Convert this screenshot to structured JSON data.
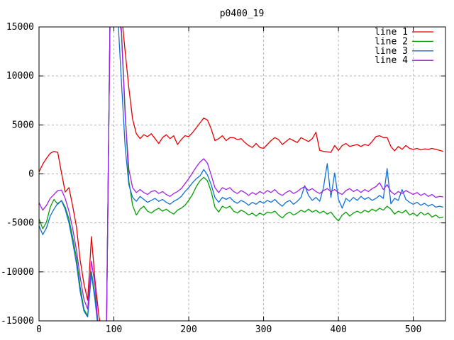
{
  "chart_data": {
    "type": "line",
    "title": "p0400_19",
    "xlabel": "",
    "ylabel": "",
    "xlim": [
      0,
      543
    ],
    "ylim": [
      -15000,
      15000
    ],
    "x_ticks": [
      0,
      100,
      200,
      300,
      400,
      500
    ],
    "y_ticks": [
      15000,
      10000,
      5000,
      0,
      -5000,
      -10000,
      -15000
    ],
    "grid": true,
    "legend_position": "top-right-inside",
    "x": [
      0,
      5,
      10,
      15,
      20,
      25,
      30,
      35,
      40,
      45,
      50,
      55,
      60,
      65,
      70,
      75,
      80,
      85,
      90,
      95,
      100,
      105,
      110,
      115,
      120,
      125,
      130,
      135,
      140,
      145,
      150,
      155,
      160,
      165,
      170,
      175,
      180,
      185,
      190,
      195,
      200,
      205,
      210,
      215,
      220,
      225,
      230,
      235,
      240,
      245,
      250,
      255,
      260,
      265,
      270,
      275,
      280,
      285,
      290,
      295,
      300,
      305,
      310,
      315,
      320,
      325,
      330,
      335,
      340,
      345,
      350,
      355,
      360,
      365,
      370,
      375,
      380,
      385,
      390,
      395,
      400,
      405,
      410,
      415,
      420,
      425,
      430,
      435,
      440,
      445,
      450,
      455,
      460,
      465,
      470,
      475,
      480,
      485,
      490,
      495,
      500,
      505,
      510,
      515,
      520,
      525,
      530,
      535,
      540
    ],
    "series": [
      {
        "name": "line 1",
        "color": "#e60000",
        "values": [
          200,
          1000,
          1600,
          2100,
          2300,
          2200,
          100,
          -1850,
          -1400,
          -3300,
          -5400,
          -8800,
          -11200,
          -12900,
          -6400,
          -11000,
          -14500,
          -16500,
          -16500,
          16500,
          16500,
          16500,
          16500,
          12500,
          8800,
          5600,
          4100,
          3600,
          4000,
          3800,
          4100,
          3600,
          3100,
          3700,
          4000,
          3600,
          3900,
          3000,
          3500,
          3900,
          3800,
          4200,
          4700,
          5200,
          5700,
          5500,
          4600,
          3400,
          3600,
          3900,
          3400,
          3700,
          3700,
          3500,
          3600,
          3200,
          2900,
          2700,
          3100,
          2700,
          2600,
          3000,
          3400,
          3700,
          3500,
          3000,
          3300,
          3600,
          3400,
          3200,
          3700,
          3500,
          3300,
          3600,
          4250,
          2400,
          2300,
          2250,
          2200,
          2900,
          2400,
          2900,
          3100,
          2800,
          2900,
          3000,
          2800,
          3000,
          2900,
          3300,
          3800,
          3900,
          3700,
          3700,
          2800,
          2350,
          2800,
          2500,
          2900,
          2600,
          2500,
          2600,
          2450,
          2550,
          2500,
          2600,
          2500,
          2400,
          2300
        ]
      },
      {
        "name": "line 2",
        "color": "#00a000",
        "values": [
          -4600,
          -5600,
          -4900,
          -3400,
          -2600,
          -3100,
          -2700,
          -3400,
          -4600,
          -6500,
          -8600,
          -11500,
          -13800,
          -14500,
          -10000,
          -12500,
          -16500,
          -16500,
          -16500,
          16500,
          16500,
          16500,
          14800,
          6500,
          -700,
          -3200,
          -4200,
          -3600,
          -3300,
          -3800,
          -4000,
          -3700,
          -3500,
          -3800,
          -3600,
          -3900,
          -4100,
          -3700,
          -3500,
          -3200,
          -2700,
          -2100,
          -1300,
          -700,
          -350,
          -700,
          -1800,
          -3400,
          -3900,
          -3300,
          -3500,
          -3300,
          -3800,
          -4000,
          -3700,
          -3900,
          -4200,
          -4000,
          -4300,
          -4000,
          -4200,
          -3900,
          -4000,
          -3800,
          -4200,
          -4500,
          -4100,
          -3900,
          -4200,
          -4000,
          -3700,
          -3900,
          -3600,
          -3900,
          -3700,
          -4000,
          -3800,
          -4100,
          -3900,
          -4400,
          -4800,
          -4200,
          -3900,
          -4300,
          -4000,
          -3800,
          -4000,
          -3700,
          -3900,
          -3600,
          -3800,
          -3500,
          -3700,
          -3300,
          -3600,
          -4100,
          -3800,
          -4000,
          -3700,
          -4200,
          -4000,
          -4300,
          -3900,
          -4200,
          -4000,
          -4400,
          -4200,
          -4500,
          -4400
        ]
      },
      {
        "name": "line 3",
        "color": "#0e6fd8",
        "values": [
          -5300,
          -6200,
          -5500,
          -4300,
          -3600,
          -3000,
          -2750,
          -3600,
          -5000,
          -7000,
          -9200,
          -12000,
          -14000,
          -14600,
          -10200,
          -13000,
          -16500,
          -16500,
          -16500,
          16500,
          16500,
          16500,
          9500,
          2800,
          -1100,
          -2400,
          -2800,
          -2300,
          -2600,
          -2900,
          -2700,
          -2500,
          -2800,
          -2600,
          -2900,
          -3100,
          -2800,
          -2600,
          -2300,
          -1800,
          -1400,
          -900,
          -500,
          -200,
          450,
          -100,
          -1100,
          -2400,
          -2900,
          -2400,
          -2600,
          -2400,
          -2800,
          -3000,
          -2700,
          -2900,
          -3200,
          -2900,
          -3100,
          -2800,
          -3000,
          -2700,
          -2900,
          -2600,
          -3000,
          -3300,
          -2900,
          -2700,
          -3100,
          -2800,
          -2400,
          -1200,
          -2200,
          -2700,
          -2400,
          -2800,
          -1400,
          1050,
          -2400,
          100,
          -2600,
          -3500,
          -2500,
          -2800,
          -2400,
          -2700,
          -2300,
          -2600,
          -2400,
          -2700,
          -2500,
          -2200,
          -2500,
          550,
          -3050,
          -2500,
          -2700,
          -1600,
          -2600,
          -2900,
          -3100,
          -2900,
          -3200,
          -3000,
          -3300,
          -3100,
          -3400,
          -3300,
          -3400
        ]
      },
      {
        "name": "line 4",
        "color": "#a320e8",
        "values": [
          -2950,
          -3700,
          -3200,
          -2500,
          -2100,
          -1700,
          -1650,
          -2500,
          -3800,
          -5600,
          -7800,
          -10500,
          -12800,
          -13800,
          -8900,
          -11500,
          -16500,
          -16500,
          -16500,
          16500,
          16500,
          16500,
          14500,
          6000,
          500,
          -1400,
          -1900,
          -1600,
          -1900,
          -2100,
          -1800,
          -1700,
          -2000,
          -1800,
          -2100,
          -2300,
          -2000,
          -1800,
          -1500,
          -1000,
          -500,
          100,
          700,
          1200,
          1550,
          1100,
          -100,
          -1400,
          -1900,
          -1400,
          -1600,
          -1400,
          -1800,
          -2000,
          -1700,
          -1900,
          -2200,
          -1900,
          -2100,
          -1800,
          -2000,
          -1700,
          -1900,
          -1600,
          -2000,
          -2200,
          -1900,
          -1700,
          -2000,
          -1800,
          -1500,
          -1300,
          -1700,
          -1500,
          -1800,
          -2000,
          -1700,
          -1500,
          -1800,
          -1600,
          -1900,
          -2100,
          -1700,
          -1500,
          -1800,
          -1600,
          -1900,
          -1600,
          -1800,
          -1500,
          -1300,
          -900,
          -1600,
          -1100,
          -1800,
          -2100,
          -1800,
          -2000,
          -1700,
          -1900,
          -2100,
          -1900,
          -2200,
          -2000,
          -2300,
          -2100,
          -2400,
          -2300,
          -2350
        ]
      }
    ]
  },
  "colors": {
    "background": "#ffffff",
    "border": "#000000",
    "grid": "#b0b0b0",
    "text": "#000000"
  }
}
